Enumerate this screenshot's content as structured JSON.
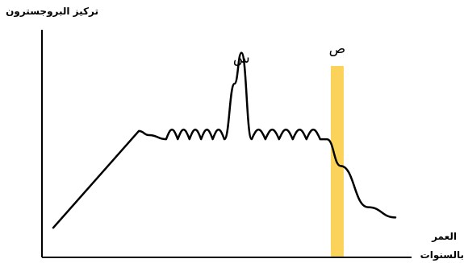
{
  "chart_data": {
    "type": "line",
    "title": "",
    "ylabel": "تركيز البروجسترون",
    "xlabel_lines": [
      "العمر",
      "بالسنوات"
    ],
    "grid": false,
    "legend": "none",
    "xlim": [
      0,
      100
    ],
    "ylim": [
      0,
      100
    ],
    "series": [
      {
        "x": [
          0,
          25,
          28,
          33,
          50,
          53,
          55,
          58,
          78,
          80,
          84,
          92,
          100
        ],
        "y": [
          5,
          52,
          50,
          48,
          48,
          75,
          90,
          48,
          48,
          48,
          35,
          15,
          10
        ]
      }
    ],
    "annotations": [
      {
        "label": "س",
        "x": 55
      },
      {
        "label": "ص",
        "x": 83
      }
    ],
    "band": {
      "x": 83,
      "color": "#FCD35A"
    },
    "line_color": "#000000"
  }
}
